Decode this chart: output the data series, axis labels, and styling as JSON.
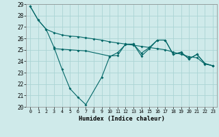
{
  "xlabel": "Humidex (Indice chaleur)",
  "xlim": [
    -0.5,
    23.5
  ],
  "ylim": [
    20,
    29
  ],
  "yticks": [
    20,
    21,
    22,
    23,
    24,
    25,
    26,
    27,
    28,
    29
  ],
  "xticks": [
    0,
    1,
    2,
    3,
    4,
    5,
    6,
    7,
    8,
    9,
    10,
    11,
    12,
    13,
    14,
    15,
    16,
    17,
    18,
    19,
    20,
    21,
    22,
    23
  ],
  "bg_color": "#cfeaea",
  "line_color": "#006666",
  "grid_color": "#aad4d4",
  "line1_x": [
    0,
    1,
    2,
    3,
    4,
    5,
    6,
    7,
    8,
    9,
    10,
    11,
    12,
    13,
    14,
    15,
    16,
    17,
    18,
    19,
    20,
    21,
    22,
    23
  ],
  "line1_y": [
    28.8,
    27.6,
    26.8,
    26.5,
    26.3,
    26.2,
    26.15,
    26.05,
    25.95,
    25.85,
    25.7,
    25.6,
    25.5,
    25.4,
    25.3,
    25.2,
    25.1,
    25.0,
    24.8,
    24.6,
    24.4,
    24.3,
    23.75,
    23.6
  ],
  "line2_x": [
    0,
    1,
    2,
    3,
    4,
    5,
    6,
    7,
    9,
    10,
    11,
    12,
    13,
    14,
    15,
    16,
    17,
    18,
    19,
    20,
    21,
    22,
    23
  ],
  "line2_y": [
    28.8,
    27.6,
    26.8,
    25.2,
    23.3,
    21.6,
    20.85,
    20.2,
    22.6,
    24.4,
    24.75,
    25.45,
    25.5,
    24.7,
    25.2,
    25.85,
    25.85,
    24.6,
    24.8,
    24.2,
    24.6,
    23.8,
    23.6
  ],
  "line3_x": [
    3,
    4,
    5,
    6,
    7,
    10,
    11,
    12,
    13,
    14,
    15,
    16,
    17,
    18,
    19,
    20,
    21,
    22,
    23
  ],
  "line3_y": [
    25.1,
    25.05,
    25.0,
    24.95,
    24.9,
    24.45,
    24.5,
    25.5,
    25.5,
    24.45,
    25.1,
    25.85,
    25.85,
    24.6,
    24.75,
    24.2,
    24.6,
    23.8,
    23.6
  ]
}
